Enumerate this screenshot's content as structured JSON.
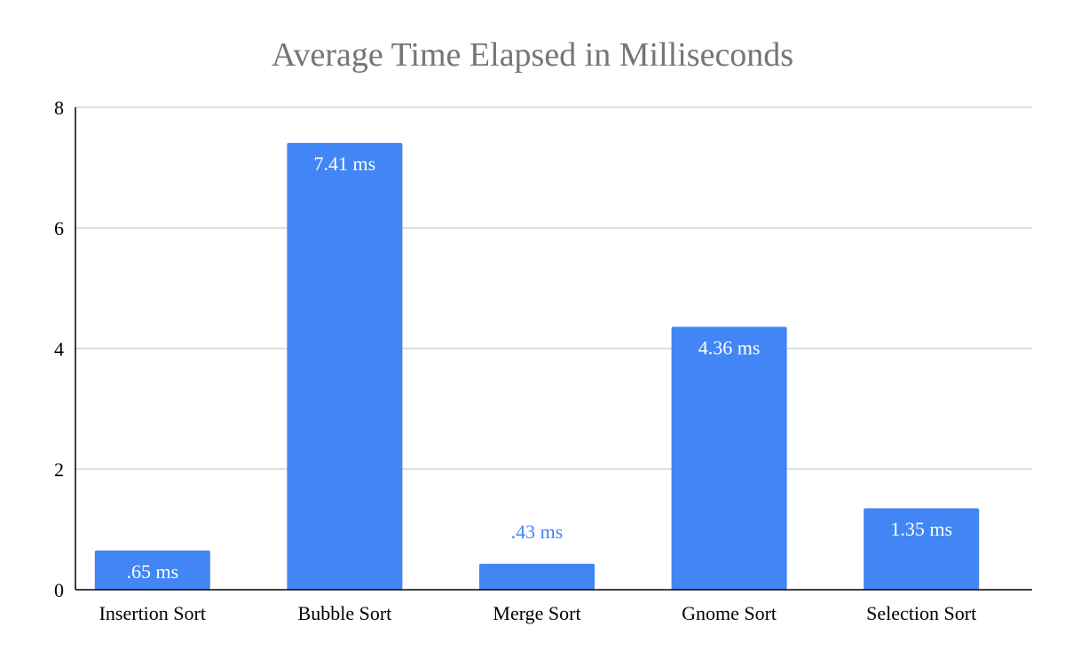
{
  "chart_data": {
    "type": "bar",
    "title": "Average Time Elapsed in Milliseconds",
    "xlabel": "",
    "ylabel": "",
    "categories": [
      "Insertion Sort",
      "Bubble Sort",
      "Merge Sort",
      "Gnome Sort",
      "Selection Sort"
    ],
    "values": [
      0.65,
      7.41,
      0.43,
      4.36,
      1.35
    ],
    "data_labels": [
      ".65 ms",
      "7.41 ms",
      ".43 ms",
      "4.36 ms",
      "1.35 ms"
    ],
    "ylim": [
      0,
      8
    ],
    "yticks": [
      "0",
      "2",
      "4",
      "6",
      "8"
    ],
    "grid": true,
    "legend": "none",
    "colors": {
      "bar": "#4285f4",
      "label_inside": "#ffffff",
      "label_outside": "#4285f4",
      "gridline": "#cccccc",
      "axis": "#000000",
      "title": "#757575"
    }
  }
}
